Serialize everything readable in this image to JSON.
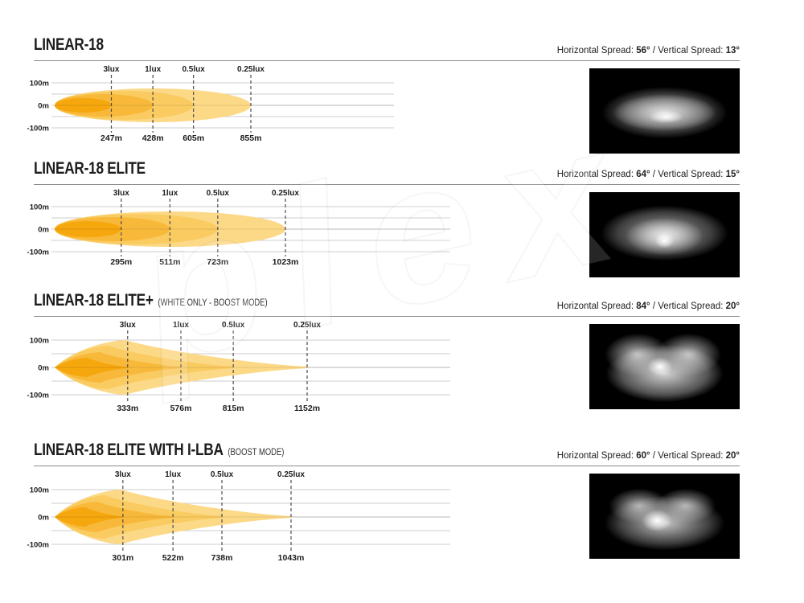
{
  "page": {
    "background": "#ffffff"
  },
  "labels": {
    "horizontal_spread_label": "Horizontal Spread:",
    "vertical_spread_label": "Vertical Spread:",
    "spread_separator": "/"
  },
  "style": {
    "beam_palette_inner_to_outer": [
      "#F5A70D",
      "#F8B93B",
      "#FACB60",
      "#FCD987"
    ],
    "grid_color": "#cccccc",
    "dash_color": "#4d4d4d",
    "text_color": "#1d1d1d",
    "divider_color": "#8c8c8c",
    "beam_photo_background": "#000000"
  },
  "watermark": {
    "visible_text": "plex"
  },
  "chart_data": [
    {
      "type": "area",
      "title": "LINEAR-18",
      "subtitle": "",
      "horizontal_spread": "56°",
      "vertical_spread": "13°",
      "beam_style": "nested-ellipses",
      "lux_levels": [
        "3lux",
        "1lux",
        "0.5lux",
        "0.25lux"
      ],
      "distances_m": [
        247,
        428,
        605,
        855
      ],
      "distance_labels": [
        "247m",
        "428m",
        "605m",
        "855m"
      ],
      "y_ticks": [
        "100m",
        "0m",
        "-100m"
      ],
      "y_range_m": [
        -100,
        100
      ],
      "x_axis_unit": "m",
      "grid": true,
      "beam_image": "elliptical-white-glow-on-black"
    },
    {
      "type": "area",
      "title": "LINEAR-18 ELITE",
      "subtitle": "",
      "horizontal_spread": "64°",
      "vertical_spread": "15°",
      "beam_style": "nested-ellipses",
      "lux_levels": [
        "3lux",
        "1lux",
        "0.5lux",
        "0.25lux"
      ],
      "distances_m": [
        295,
        511,
        723,
        1023
      ],
      "distance_labels": [
        "295m",
        "511m",
        "723m",
        "1023m"
      ],
      "y_ticks": [
        "100m",
        "0m",
        "-100m"
      ],
      "y_range_m": [
        -100,
        100
      ],
      "x_axis_unit": "m",
      "grid": true,
      "beam_image": "elliptical-glow-bright-hotspot-on-black"
    },
    {
      "type": "area",
      "title": "LINEAR-18 ELITE+",
      "subtitle": "(WHITE ONLY - BOOST MODE)",
      "horizontal_spread": "84°",
      "vertical_spread": "20°",
      "beam_style": "nested-spear-shapes",
      "lux_levels": [
        "3lux",
        "1lux",
        "0.5lux",
        "0.25lux"
      ],
      "distances_m": [
        333,
        576,
        815,
        1152
      ],
      "distance_labels": [
        "333m",
        "576m",
        "815m",
        "1152m"
      ],
      "y_ticks": [
        "100m",
        "0m",
        "-100m"
      ],
      "y_range_m": [
        -100,
        100
      ],
      "x_axis_unit": "m",
      "grid": true,
      "beam_image": "twin-lobed-wide-glow-on-black"
    },
    {
      "type": "area",
      "title": "LINEAR-18 ELITE WITH I-LBA",
      "subtitle": "(BOOST MODE)",
      "horizontal_spread": "60°",
      "vertical_spread": "20°",
      "beam_style": "nested-spear-shapes",
      "lux_levels": [
        "3lux",
        "1lux",
        "0.5lux",
        "0.25lux"
      ],
      "distances_m": [
        301,
        522,
        738,
        1043
      ],
      "distance_labels": [
        "301m",
        "522m",
        "738m",
        "1043m"
      ],
      "y_ticks": [
        "100m",
        "0m",
        "-100m"
      ],
      "y_range_m": [
        -100,
        100
      ],
      "x_axis_unit": "m",
      "grid": true,
      "beam_image": "twin-lobed-glow-bright-hotspot-on-black"
    }
  ]
}
